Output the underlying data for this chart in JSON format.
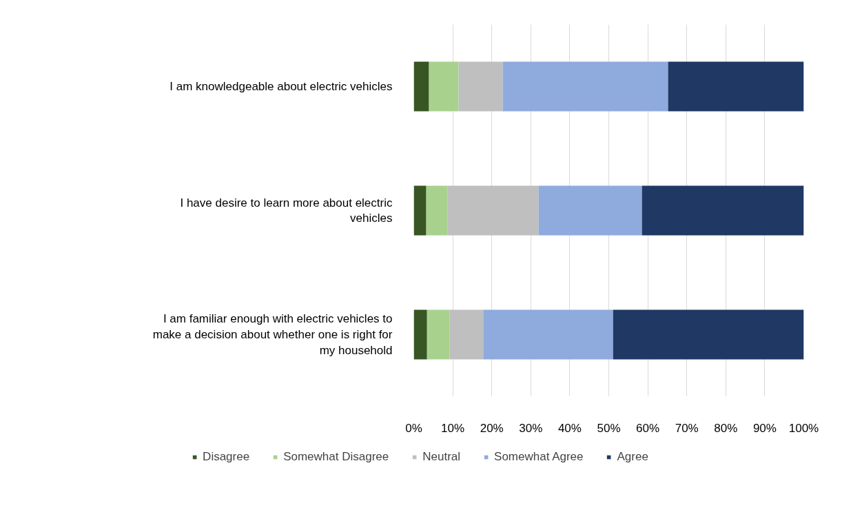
{
  "chart_data": {
    "type": "bar",
    "orientation": "horizontal",
    "stacked": true,
    "categories": [
      "I am knowledgeable about electric vehicles",
      "I have desire to learn more about electric vehicles",
      "I am familiar enough with electric vehicles to make a decision about whether one is right for my household"
    ],
    "series": [
      {
        "name": "Disagree",
        "color": "#375623",
        "values": [
          3.9,
          3.2,
          3.4
        ]
      },
      {
        "name": "Somewhat Disagree",
        "color": "#a9d18e",
        "values": [
          7.6,
          5.5,
          5.8
        ]
      },
      {
        "name": "Neutral",
        "color": "#bfbfbf",
        "values": [
          11.3,
          23.3,
          8.6
        ]
      },
      {
        "name": "Somewhat Agree",
        "color": "#8faadc",
        "values": [
          42.4,
          26.5,
          33.3
        ]
      },
      {
        "name": "Agree",
        "color": "#203864",
        "values": [
          34.8,
          41.5,
          48.9
        ]
      }
    ],
    "xlim": [
      0,
      100
    ],
    "xticks": [
      {
        "value": 0,
        "label": "0%"
      },
      {
        "value": 10,
        "label": "10%"
      },
      {
        "value": 20,
        "label": "20%"
      },
      {
        "value": 30,
        "label": "30%"
      },
      {
        "value": 40,
        "label": "40%"
      },
      {
        "value": 50,
        "label": "50%"
      },
      {
        "value": 60,
        "label": "60%"
      },
      {
        "value": 70,
        "label": "70%"
      },
      {
        "value": 80,
        "label": "80%"
      },
      {
        "value": 90,
        "label": "90%"
      },
      {
        "value": 100,
        "label": "100%"
      }
    ],
    "grid": "x",
    "legend": "bottom"
  }
}
